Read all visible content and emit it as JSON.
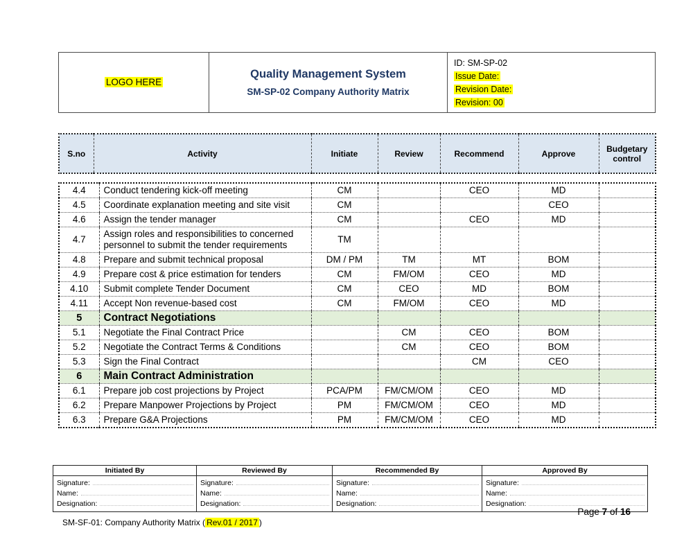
{
  "colors": {
    "accent_blue_text": "#1f3864",
    "table_header_fill": "#dce6f1",
    "section_row_fill": "#e2efd9",
    "highlight_yellow": "#ffff00"
  },
  "header": {
    "logo_text": "LOGO HERE",
    "title": "Quality Management System",
    "subtitle": "SM-SP-02 Company Authority Matrix",
    "doc_id": "ID: SM-SP-02",
    "issue_date": "Issue Date:",
    "revision_date": "Revision Date:",
    "revision": "Revision: 00"
  },
  "matrix": {
    "columns": [
      "S.no",
      "Activity",
      "Initiate",
      "Review",
      "Recommend",
      "Approve",
      "Budgetary control"
    ],
    "rows": [
      {
        "type": "item",
        "sno": "4.4",
        "activity": "Conduct tendering kick-off meeting",
        "initiate": "CM",
        "review": "",
        "recommend": "CEO",
        "approve": "MD",
        "budget": ""
      },
      {
        "type": "item",
        "sno": "4.5",
        "activity": "Coordinate explanation meeting and site visit",
        "initiate": "CM",
        "review": "",
        "recommend": "",
        "approve": "CEO",
        "budget": ""
      },
      {
        "type": "item",
        "sno": "4.6",
        "activity": "Assign the tender manager",
        "initiate": "CM",
        "review": "",
        "recommend": "CEO",
        "approve": "MD",
        "budget": ""
      },
      {
        "type": "item",
        "sno": "4.7",
        "activity": "Assign roles and responsibilities to concerned personnel to submit the tender requirements",
        "initiate": "TM",
        "review": "",
        "recommend": "",
        "approve": "",
        "budget": ""
      },
      {
        "type": "item",
        "sno": "4.8",
        "activity": "Prepare and submit technical proposal",
        "initiate": "DM / PM",
        "review": "TM",
        "recommend": "MT",
        "approve": "BOM",
        "budget": ""
      },
      {
        "type": "item",
        "sno": "4.9",
        "activity": "Prepare cost & price estimation for tenders",
        "initiate": "CM",
        "review": "FM/OM",
        "recommend": "CEO",
        "approve": "MD",
        "budget": ""
      },
      {
        "type": "item",
        "sno": "4.10",
        "activity": "Submit complete Tender Document",
        "initiate": "CM",
        "review": "CEO",
        "recommend": "MD",
        "approve": "BOM",
        "budget": ""
      },
      {
        "type": "item",
        "sno": "4.11",
        "activity": "Accept Non revenue-based cost",
        "initiate": "CM",
        "review": "FM/OM",
        "recommend": "CEO",
        "approve": "MD",
        "budget": ""
      },
      {
        "type": "section",
        "sno": "5",
        "activity": "Contract Negotiations",
        "initiate": "",
        "review": "",
        "recommend": "",
        "approve": "",
        "budget": ""
      },
      {
        "type": "item",
        "sno": "5.1",
        "activity": "Negotiate the Final Contract Price",
        "initiate": "",
        "review": "CM",
        "recommend": "CEO",
        "approve": "BOM",
        "budget": ""
      },
      {
        "type": "item",
        "sno": "5.2",
        "activity": "Negotiate the Contract Terms & Conditions",
        "initiate": "",
        "review": "CM",
        "recommend": "CEO",
        "approve": "BOM",
        "budget": ""
      },
      {
        "type": "item",
        "sno": "5.3",
        "activity": "Sign the Final Contract",
        "initiate": "",
        "review": "",
        "recommend": "CM",
        "approve": "CEO",
        "budget": ""
      },
      {
        "type": "section",
        "sno": "6",
        "activity": "Main Contract Administration",
        "initiate": "",
        "review": "",
        "recommend": "",
        "approve": "",
        "budget": ""
      },
      {
        "type": "item",
        "sno": "6.1",
        "activity": "Prepare job cost projections by Project",
        "initiate": "PCA/PM",
        "review": "FM/CM/OM",
        "recommend": "CEO",
        "approve": "MD",
        "budget": ""
      },
      {
        "type": "item",
        "sno": "6.2",
        "activity": "Prepare Manpower Projections by Project",
        "initiate": "PM",
        "review": "FM/CM/OM",
        "recommend": "CEO",
        "approve": "MD",
        "budget": ""
      },
      {
        "type": "item",
        "sno": "6.3",
        "activity": "Prepare G&A Projections",
        "initiate": "PM",
        "review": "FM/CM/OM",
        "recommend": "CEO",
        "approve": "MD",
        "budget": ""
      }
    ]
  },
  "signoff": {
    "columns": [
      {
        "title": "Initiated By",
        "labels": [
          "Signature:",
          "Name:",
          "Designation:"
        ]
      },
      {
        "title": "Reviewed By",
        "labels": [
          "Signature:",
          "Name:",
          "Designation:"
        ]
      },
      {
        "title": "Recommended By",
        "labels": [
          "Signature:",
          "Name:",
          "Designation:"
        ]
      },
      {
        "title": "Approved By",
        "labels": [
          "Signature:",
          "Name:",
          "Designation:"
        ]
      }
    ]
  },
  "footer": {
    "page_word": "Page",
    "page_number": "7",
    "of_word": "of",
    "page_total": "16",
    "doc_ref_prefix": "SM-SF-01: Company Authority Matrix (",
    "doc_ref_highlight": "Rev.01 / 2017",
    "doc_ref_suffix": ")"
  }
}
